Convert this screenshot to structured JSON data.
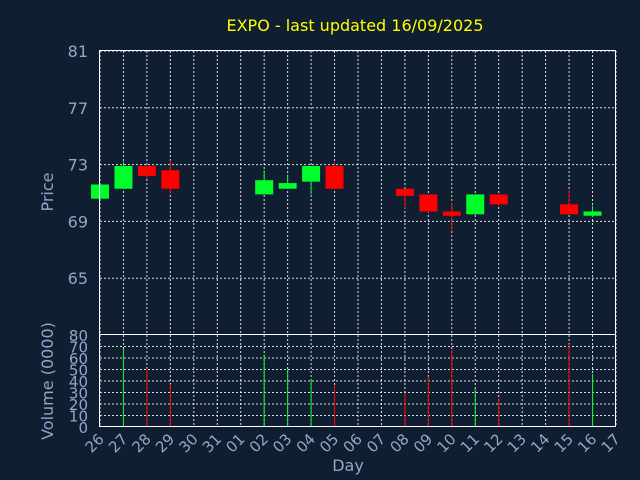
{
  "chart_data": {
    "type": "candlestick",
    "title": "EXPO - last updated 16/09/2025",
    "xlabel": "Day",
    "ylabel": "Price",
    "volume_label": "Volume (0000)",
    "ylim": [
      61,
      81
    ],
    "yticks": [
      65,
      69,
      73,
      77,
      81
    ],
    "volume_ylim": [
      0,
      80
    ],
    "volume_yticks": [
      0,
      10,
      20,
      30,
      40,
      50,
      60,
      70,
      80
    ],
    "grid": true,
    "colors": {
      "up": "#00ff2a",
      "down": "#ff0000",
      "background": "#0f1e31",
      "title": "#ffff00",
      "axis_text": "#8fa8c8"
    },
    "x_ticks": [
      "26",
      "27",
      "28",
      "29",
      "30",
      "31",
      "01",
      "02",
      "03",
      "04",
      "05",
      "06",
      "07",
      "08",
      "09",
      "10",
      "11",
      "12",
      "13",
      "14",
      "15",
      "16",
      "17"
    ],
    "candles": [
      {
        "day": "26",
        "open": 70.6,
        "high": 71.6,
        "low": 70.5,
        "close": 71.6,
        "volume": 0
      },
      {
        "day": "27",
        "open": 71.3,
        "high": 73.2,
        "low": 71.3,
        "close": 72.9,
        "volume": 68
      },
      {
        "day": "28",
        "open": 72.9,
        "high": 72.9,
        "low": 72.0,
        "close": 72.2,
        "volume": 51
      },
      {
        "day": "29",
        "open": 72.6,
        "high": 73.3,
        "low": 70.9,
        "close": 71.3,
        "volume": 37
      },
      {
        "day": "02",
        "open": 70.9,
        "high": 72.6,
        "low": 70.9,
        "close": 71.9,
        "volume": 63
      },
      {
        "day": "03",
        "open": 71.3,
        "high": 72.3,
        "low": 71.3,
        "close": 71.7,
        "volume": 50
      },
      {
        "day": "04",
        "open": 71.8,
        "high": 72.9,
        "low": 70.9,
        "close": 72.9,
        "volume": 41
      },
      {
        "day": "05",
        "open": 72.9,
        "high": 73.2,
        "low": 71.3,
        "close": 71.3,
        "volume": 36
      },
      {
        "day": "08",
        "open": 71.3,
        "high": 71.3,
        "low": 69.9,
        "close": 70.8,
        "volume": 30
      },
      {
        "day": "09",
        "open": 70.9,
        "high": 70.9,
        "low": 69.6,
        "close": 69.7,
        "volume": 44
      },
      {
        "day": "10",
        "open": 69.7,
        "high": 70.3,
        "low": 68.3,
        "close": 69.4,
        "volume": 67
      },
      {
        "day": "11",
        "open": 69.5,
        "high": 70.9,
        "low": 69.5,
        "close": 70.9,
        "volume": 33
      },
      {
        "day": "12",
        "open": 70.9,
        "high": 70.9,
        "low": 70.1,
        "close": 70.2,
        "volume": 25
      },
      {
        "day": "15",
        "open": 70.2,
        "high": 71.2,
        "low": 69.5,
        "close": 69.5,
        "volume": 72
      },
      {
        "day": "16",
        "open": 69.4,
        "high": 70.1,
        "low": 69.3,
        "close": 69.7,
        "volume": 46
      }
    ]
  }
}
